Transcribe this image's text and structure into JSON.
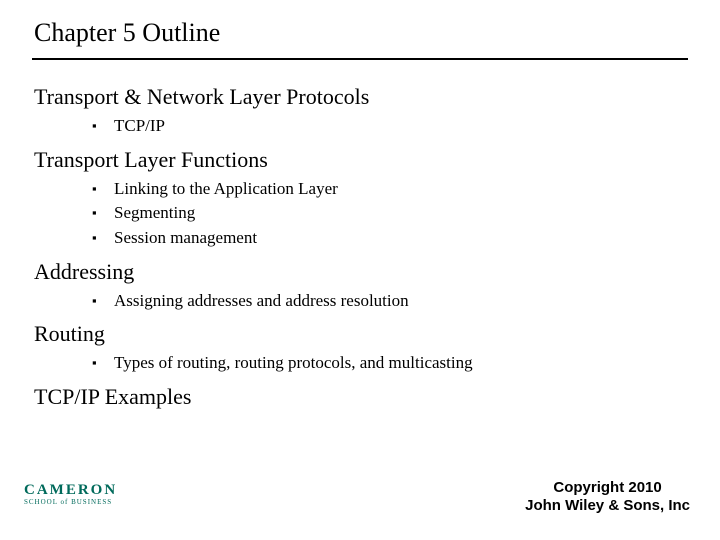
{
  "title": "Chapter 5 Outline",
  "colors": {
    "text": "#000000",
    "background": "#ffffff",
    "rule": "#000000",
    "logo": "#006a5b"
  },
  "typography": {
    "title_fontsize": 26,
    "section_fontsize": 22,
    "bullet_fontsize": 17,
    "copyright_fontsize": 15,
    "body_font": "Times New Roman",
    "copyright_font": "Arial"
  },
  "sections": [
    {
      "heading": "Transport & Network Layer Protocols",
      "items": [
        "TCP/IP"
      ]
    },
    {
      "heading": "Transport Layer Functions",
      "items": [
        "Linking to the Application Layer",
        "Segmenting",
        "Session management"
      ]
    },
    {
      "heading": "Addressing",
      "items": [
        "Assigning addresses and address resolution"
      ]
    },
    {
      "heading": "Routing",
      "items": [
        "Types of routing, routing protocols, and multicasting"
      ]
    },
    {
      "heading": "TCP/IP Examples",
      "items": []
    }
  ],
  "logo": {
    "main": "CAMERON",
    "sub": "SCHOOL of BUSINESS"
  },
  "copyright": {
    "line1": "Copyright 2010",
    "line2": "John Wiley & Sons, Inc"
  }
}
